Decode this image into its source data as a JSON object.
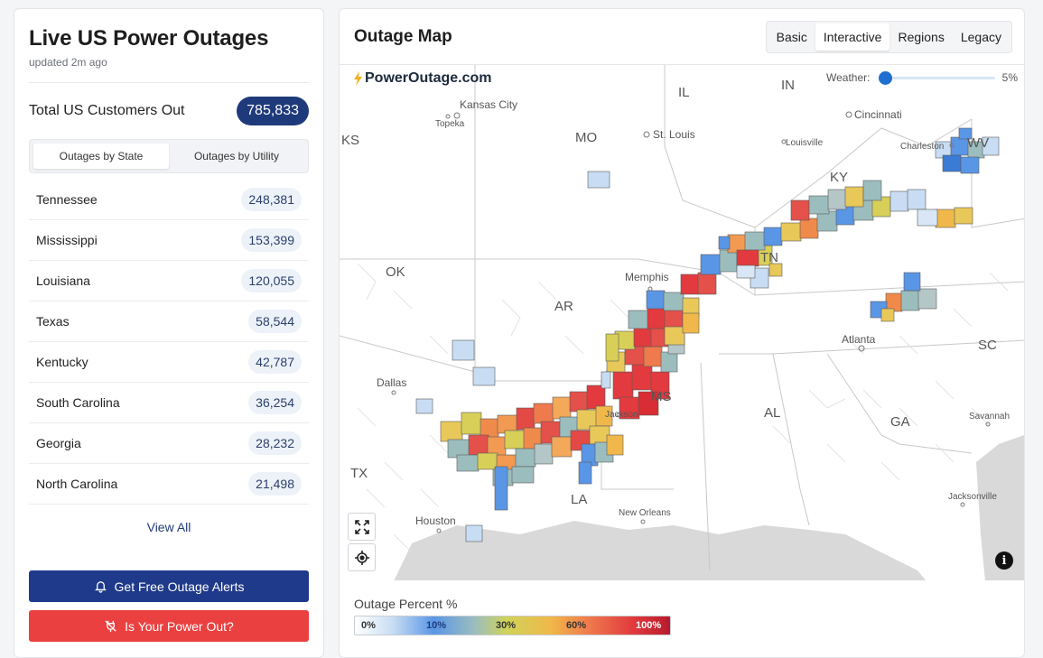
{
  "sidebar": {
    "title": "Live US Power Outages",
    "updated": "updated 2m ago",
    "total_label": "Total US Customers Out",
    "total_value": "785,833",
    "toggle": {
      "by_state": "Outages by State",
      "by_utility": "Outages by Utility"
    },
    "states": [
      {
        "name": "Tennessee",
        "count": "248,381"
      },
      {
        "name": "Mississippi",
        "count": "153,399"
      },
      {
        "name": "Louisiana",
        "count": "120,055"
      },
      {
        "name": "Texas",
        "count": "58,544"
      },
      {
        "name": "Kentucky",
        "count": "42,787"
      },
      {
        "name": "South Carolina",
        "count": "36,254"
      },
      {
        "name": "Georgia",
        "count": "28,232"
      },
      {
        "name": "North Carolina",
        "count": "21,498"
      }
    ],
    "view_all": "View All",
    "alerts_button": "Get Free Outage Alerts",
    "power_out_button": "Is Your Power Out?"
  },
  "map": {
    "title": "Outage Map",
    "tabs": [
      "Basic",
      "Interactive",
      "Regions",
      "Legacy"
    ],
    "active_tab": "Interactive",
    "brand": "PowerOutage.com",
    "weather_label": "Weather:",
    "weather_value": "5%",
    "weather_level": 0.05,
    "state_labels": [
      "KS",
      "MO",
      "IL",
      "IN",
      "KY",
      "WV",
      "OK",
      "AR",
      "TN",
      "TX",
      "LA",
      "MS",
      "AL",
      "GA",
      "SC"
    ],
    "city_labels": [
      "Kansas City",
      "Topeka",
      "St. Louis",
      "Cincinnati",
      "Louisville",
      "Charleston",
      "Memphis",
      "Atlanta",
      "Dallas",
      "Jackson",
      "Savannah",
      "Houston",
      "New Orleans",
      "Jacksonville"
    ],
    "icons": {
      "expand": "expand-icon",
      "locate": "locate-icon",
      "info": "info-icon"
    }
  },
  "legend": {
    "label": "Outage Percent %",
    "ticks": [
      "0%",
      "10%",
      "30%",
      "60%",
      "100%"
    ],
    "colors": [
      "#ffffff",
      "#5a96e6",
      "#cfd35a",
      "#f0b84a",
      "#e23a3e",
      "#b61b2c"
    ]
  }
}
